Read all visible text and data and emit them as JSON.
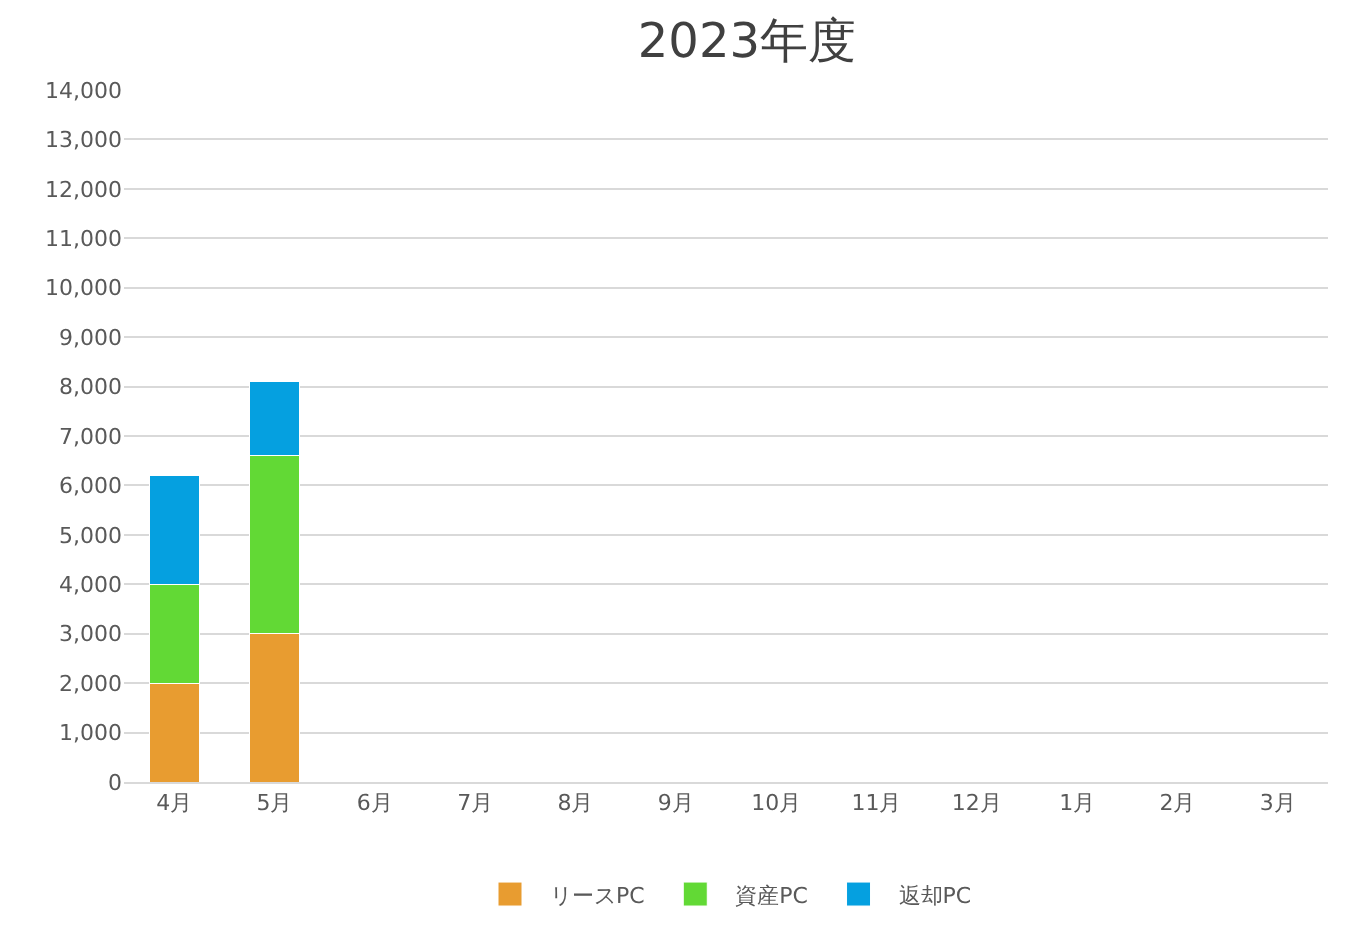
{
  "chart_data": {
    "type": "bar",
    "title": "2023年度",
    "stacked": true,
    "categories": [
      "4月",
      "5月",
      "6月",
      "7月",
      "8月",
      "9月",
      "10月",
      "11月",
      "12月",
      "1月",
      "2月",
      "3月"
    ],
    "series": [
      {
        "name": "リースPC",
        "color": "#e89c30",
        "values": [
          2000,
          3000,
          null,
          null,
          null,
          null,
          null,
          null,
          null,
          null,
          null,
          null
        ]
      },
      {
        "name": "資産PC",
        "color": "#62d935",
        "values": [
          2000,
          3600,
          null,
          null,
          null,
          null,
          null,
          null,
          null,
          null,
          null,
          null
        ]
      },
      {
        "name": "返却PC",
        "color": "#05a0e0",
        "values": [
          2200,
          1500,
          null,
          null,
          null,
          null,
          null,
          null,
          null,
          null,
          null,
          null
        ]
      }
    ],
    "ylim": [
      0,
      14000
    ],
    "yticks": [
      {
        "value": 0,
        "label": "0"
      },
      {
        "value": 1000,
        "label": "1,000"
      },
      {
        "value": 2000,
        "label": "2,000"
      },
      {
        "value": 3000,
        "label": "3,000"
      },
      {
        "value": 4000,
        "label": "4,000"
      },
      {
        "value": 5000,
        "label": "5,000"
      },
      {
        "value": 6000,
        "label": "6,000"
      },
      {
        "value": 7000,
        "label": "7,000"
      },
      {
        "value": 8000,
        "label": "8,000"
      },
      {
        "value": 9000,
        "label": "9,000"
      },
      {
        "value": 10000,
        "label": "10,000"
      },
      {
        "value": 11000,
        "label": "11,000"
      },
      {
        "value": 12000,
        "label": "12,000"
      },
      {
        "value": 13000,
        "label": "13,000"
      },
      {
        "value": 14000,
        "label": "14,000"
      }
    ],
    "grid": "y",
    "legend": "bottom"
  }
}
